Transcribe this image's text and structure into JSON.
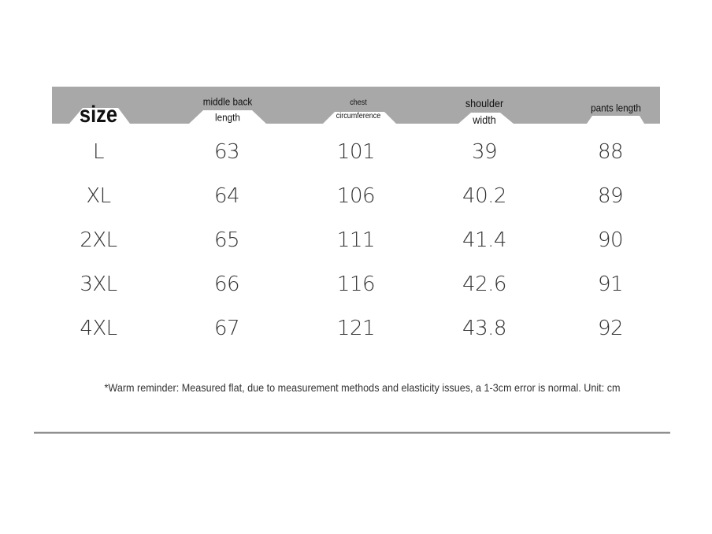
{
  "table": {
    "headers": [
      [
        "size"
      ],
      [
        "middle back",
        "length"
      ],
      [
        "chest",
        "circumference"
      ],
      [
        "shoulder",
        "width"
      ],
      [
        "pants length"
      ]
    ],
    "rows": [
      [
        "L",
        63,
        101,
        39,
        88
      ],
      [
        "XL",
        64,
        106,
        40.2,
        89
      ],
      [
        "2XL",
        65,
        111,
        41.4,
        90
      ],
      [
        "3XL",
        66,
        116,
        42.6,
        91
      ],
      [
        "4XL",
        67,
        121,
        43.8,
        92
      ]
    ]
  },
  "note": "*Warm reminder: Measured flat, due to measurement methods and elasticity issues, a 1-3cm error is normal. Unit: cm"
}
